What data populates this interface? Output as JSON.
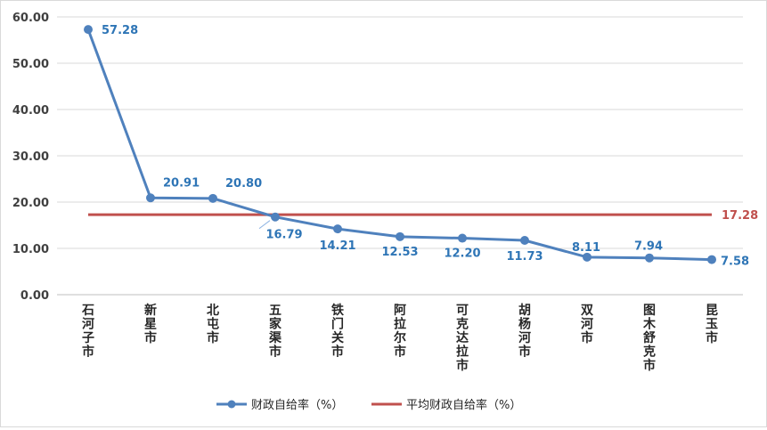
{
  "chart_data": {
    "type": "line",
    "title": "",
    "xlabel": "",
    "ylabel": "",
    "ylim": [
      0,
      60
    ],
    "y_ticks": [
      "0.00",
      "10.00",
      "20.00",
      "30.00",
      "40.00",
      "50.00",
      "60.00"
    ],
    "grid": true,
    "legend_position": "bottom",
    "categories": [
      "石河子市",
      "新星市",
      "北屯市",
      "五家渠市",
      "铁门关市",
      "阿拉尔市",
      "可克达拉市",
      "胡杨河市",
      "双河市",
      "图木舒克市",
      "昆玉市"
    ],
    "series": [
      {
        "name": "财政自给率（%）",
        "values": [
          57.28,
          20.91,
          20.8,
          16.79,
          14.21,
          12.53,
          12.2,
          11.73,
          8.11,
          7.94,
          7.58
        ],
        "labels": [
          "57.28",
          "20.91",
          "20.80",
          "16.79",
          "14.21",
          "12.53",
          "12.20",
          "11.73",
          "8.11",
          "7.94",
          "7.58"
        ],
        "color": "#4f81bd",
        "markers": true
      },
      {
        "name": "平均财政自给率（%）",
        "values": [
          17.28,
          17.28,
          17.28,
          17.28,
          17.28,
          17.28,
          17.28,
          17.28,
          17.28,
          17.28,
          17.28
        ],
        "label": "17.28",
        "color": "#c0504d",
        "markers": false
      }
    ]
  }
}
